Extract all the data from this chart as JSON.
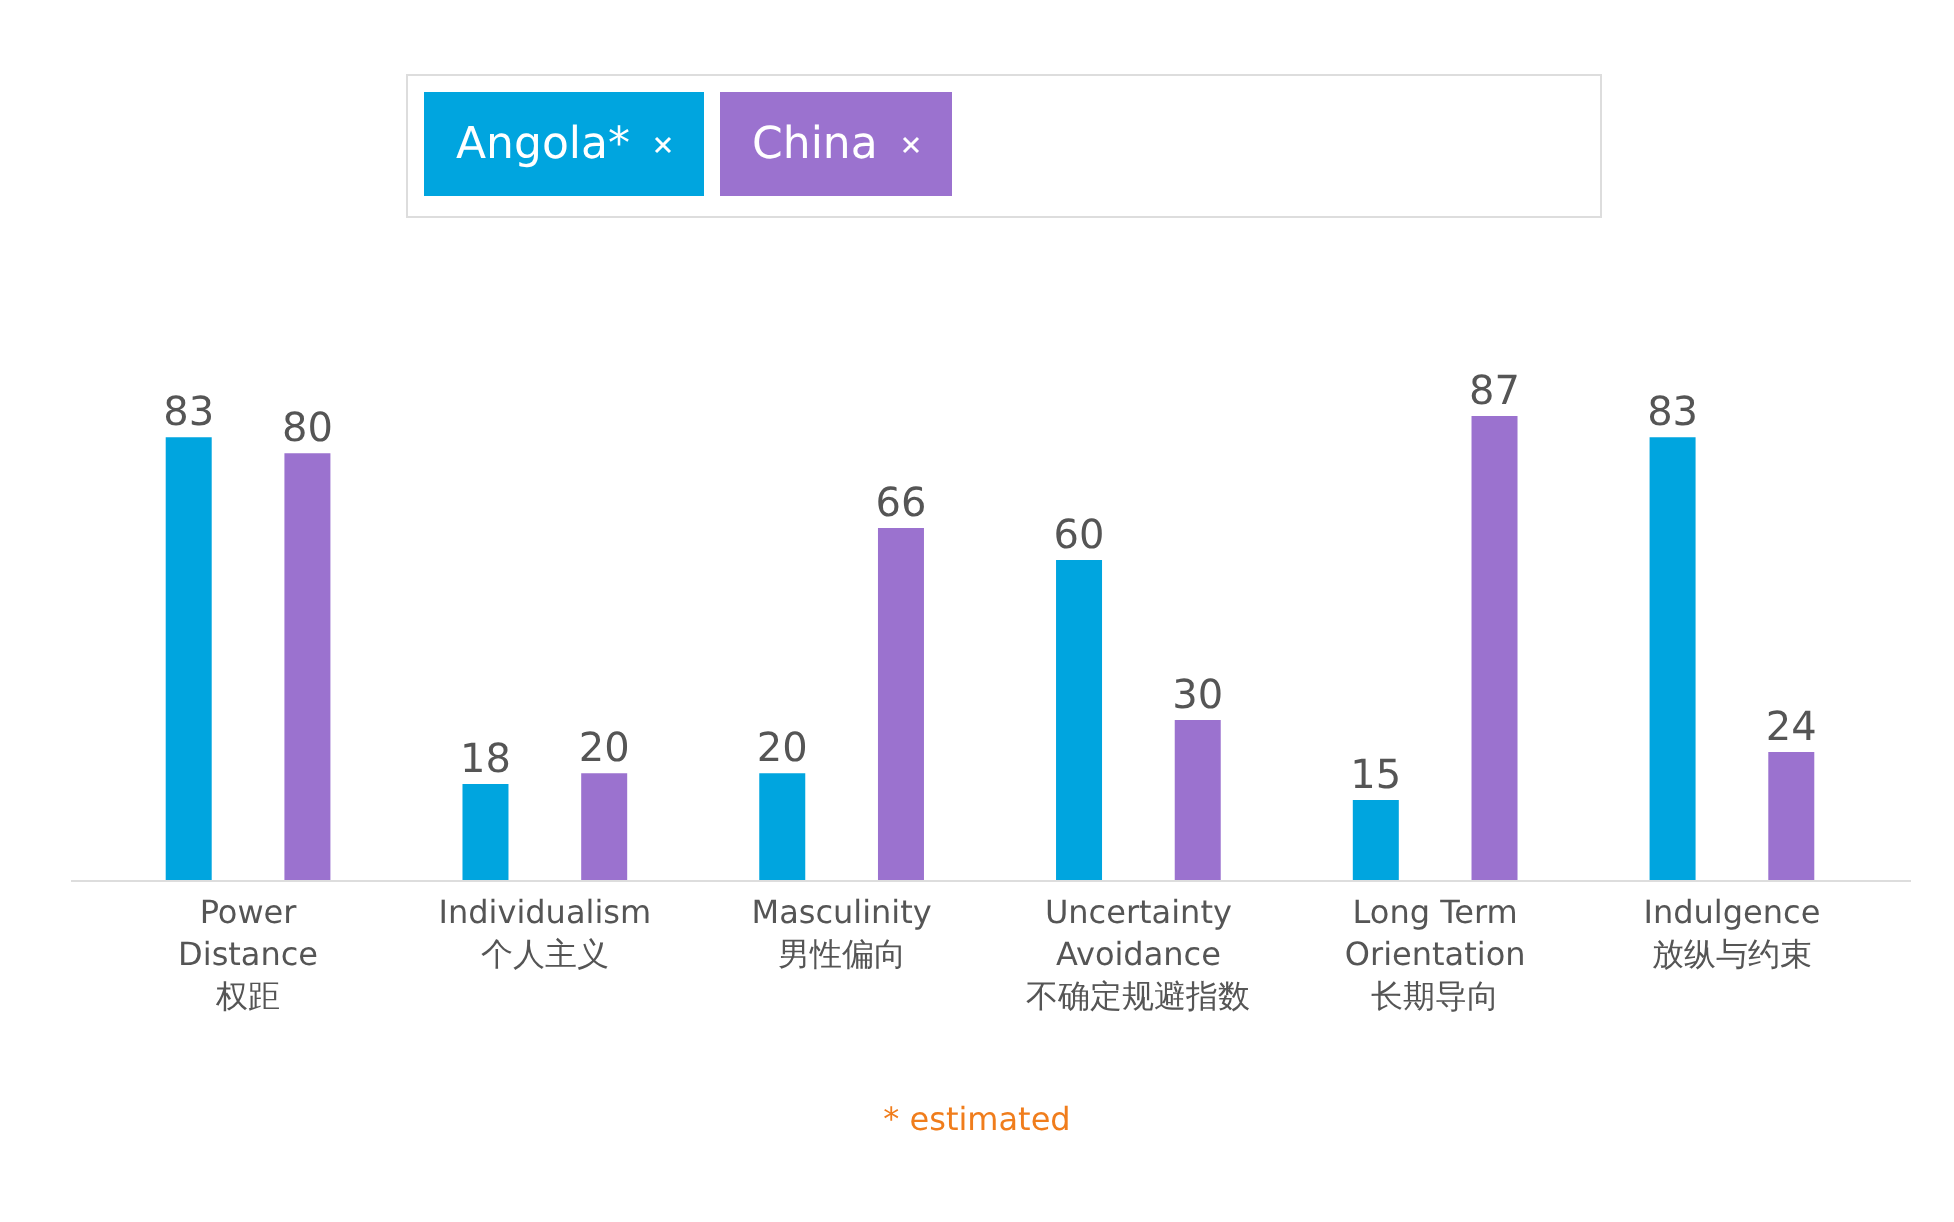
{
  "chart_data": {
    "type": "bar",
    "categories": [
      "Power\nDistance\n权距",
      "Individualism\n个人主义",
      "Masculinity\n男性偏向",
      "Uncertainty\nAvoidance\n不确定规避指数",
      "Long Term\nOrientation\n长期导向",
      "Indulgence\n放纵与约束"
    ],
    "series": [
      {
        "name": "Angola*",
        "color": "#00a5df",
        "values": [
          83,
          18,
          20,
          60,
          15,
          83
        ]
      },
      {
        "name": "China",
        "color": "#9b72cf",
        "values": [
          80,
          20,
          66,
          30,
          87,
          24
        ]
      }
    ],
    "data_labels": true,
    "legend": "top",
    "grid": false,
    "annotations": [
      "* estimated"
    ]
  }
}
